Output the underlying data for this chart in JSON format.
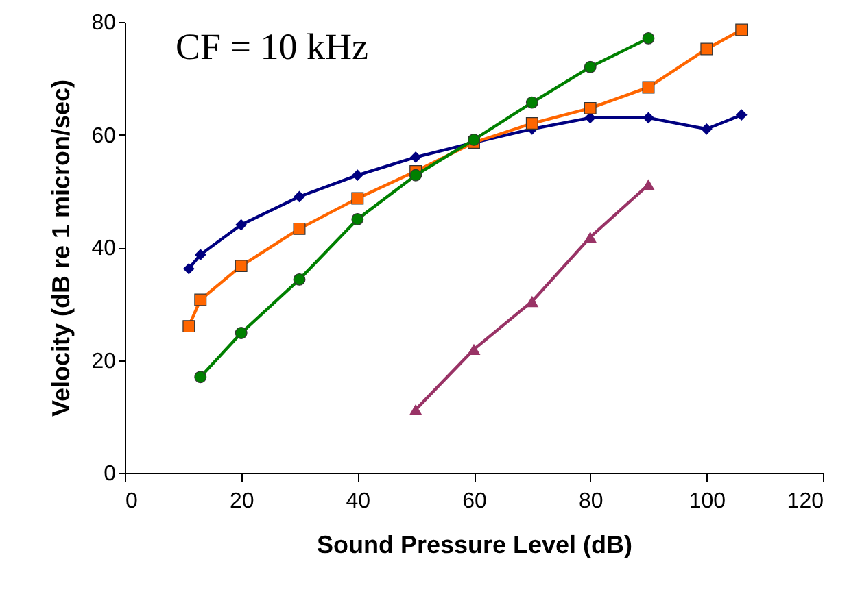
{
  "chart_data": {
    "type": "line",
    "xlabel": "Sound Pressure Level (dB)",
    "ylabel": "Velocity (dB re 1 micron/sec)",
    "annotations": [
      "CF = 10 kHz"
    ],
    "xlim": [
      0,
      120
    ],
    "xticks": [
      0,
      20,
      40,
      60,
      80,
      100,
      120
    ],
    "ylim": [
      0,
      80
    ],
    "yticks": [
      0,
      20,
      40,
      60,
      80
    ],
    "grid": false,
    "series": [
      {
        "color": "#000080",
        "marker": "diamond",
        "x": [
          11,
          13,
          20,
          30,
          40,
          50,
          60,
          70,
          80,
          90,
          100,
          106
        ],
        "values": [
          36.2,
          38.7,
          44,
          49,
          52.8,
          56,
          58.6,
          61,
          63,
          63,
          61,
          63.5
        ]
      },
      {
        "color": "#ff6600",
        "marker": "square",
        "x": [
          11,
          13,
          20,
          30,
          40,
          50,
          60,
          70,
          80,
          90,
          100,
          106
        ],
        "values": [
          26,
          30.7,
          36.7,
          43.3,
          48.7,
          53.5,
          58.6,
          62,
          64.7,
          68.4,
          75.2,
          78.6
        ]
      },
      {
        "color": "#008000",
        "marker": "circle",
        "x": [
          13,
          20,
          30,
          40,
          50,
          60,
          70,
          80,
          90
        ],
        "values": [
          17,
          24.8,
          34.3,
          45,
          52.8,
          59.1,
          65.7,
          72,
          77.1
        ]
      },
      {
        "color": "#993366",
        "marker": "triangle",
        "x": [
          50,
          60,
          70,
          80,
          90
        ],
        "values": [
          11.2,
          21.9,
          30.4,
          41.8,
          51.1
        ]
      }
    ]
  }
}
